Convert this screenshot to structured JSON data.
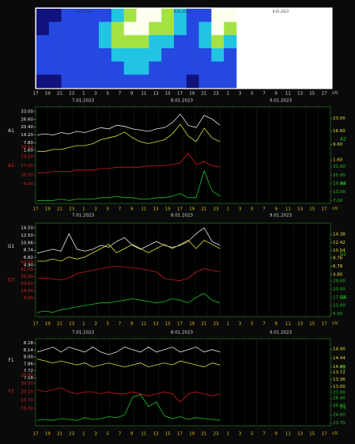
{
  "spectrogram": {
    "dates": [
      "7.01.2023",
      "8.01.2023",
      "9.01.2023"
    ],
    "intensity": [
      [
        0,
        0,
        1,
        1,
        1,
        1,
        2,
        3,
        4,
        4,
        3,
        2,
        1,
        1,
        4,
        4
      ],
      [
        0,
        1,
        1,
        1,
        1,
        2,
        3,
        4,
        4,
        3,
        3,
        2,
        1,
        2,
        4,
        3
      ],
      [
        1,
        1,
        1,
        1,
        1,
        2,
        3,
        3,
        3,
        2,
        2,
        1,
        1,
        2,
        3,
        2
      ],
      [
        1,
        1,
        1,
        1,
        1,
        1,
        2,
        2,
        2,
        2,
        1,
        1,
        1,
        1,
        2,
        1
      ],
      [
        1,
        1,
        1,
        1,
        1,
        1,
        1,
        2,
        2,
        1,
        1,
        1,
        1,
        1,
        1,
        1
      ],
      [
        0,
        0,
        1,
        1,
        1,
        1,
        1,
        1,
        1,
        1,
        1,
        1,
        0,
        1,
        1,
        1
      ]
    ]
  },
  "hours": [
    17,
    19,
    21,
    23,
    1,
    3,
    5,
    7,
    9,
    11,
    13,
    15,
    17,
    19,
    21,
    23,
    1,
    3,
    5,
    7,
    9,
    11,
    13,
    15,
    17
  ],
  "unit": "UTC",
  "panels": [
    {
      "dates": [
        "7.01.2023",
        "8.01.2023",
        "9.01.2023"
      ],
      "series": [
        {
          "name": "A1",
          "color": "#e8e8e8",
          "ticks": [
            {
              "value": 33,
              "label": "33.00"
            },
            {
              "value": 26.6,
              "label": "26.60"
            },
            {
              "value": 20.4,
              "label": "20.40"
            },
            {
              "value": 14.2,
              "label": "14.20"
            },
            {
              "value": 7.8,
              "label": "7.80"
            },
            {
              "value": 1.6,
              "label": "1.60"
            }
          ],
          "values": [
            14,
            15,
            14,
            16,
            15,
            17,
            16,
            18,
            20,
            19,
            22,
            21,
            19,
            18,
            17,
            19,
            20,
            24,
            31,
            22,
            20,
            30,
            27,
            22
          ]
        },
        {
          "name": "A2",
          "color": "#dede3a",
          "ticks": [
            {
              "value": 23,
              "label": "23.00"
            },
            {
              "value": 16.6,
              "label": "16.60"
            },
            {
              "value": 9.6,
              "label": "9.60"
            },
            {
              "value": 1.6,
              "label": "1.60"
            }
          ],
          "values": [
            6,
            6,
            7,
            7,
            8,
            9,
            9,
            10,
            12,
            13,
            14,
            16,
            13,
            11,
            10,
            11,
            12,
            15,
            20,
            14,
            11,
            18,
            13,
            11
          ]
        },
        {
          "name": "A3",
          "color": "#d01818",
          "ticks": [
            {
              "value": 30,
              "label": "30.00"
            },
            {
              "value": 23.5,
              "label": "23.50"
            },
            {
              "value": 17,
              "label": "17.00"
            },
            {
              "value": 10.5,
              "label": "10.50"
            },
            {
              "value": 4,
              "label": "4.00"
            }
          ],
          "values": [
            12,
            12,
            13,
            13,
            13,
            14,
            14,
            14,
            15,
            15,
            16,
            16,
            16,
            16,
            17,
            17,
            17,
            18,
            19,
            26,
            18,
            20,
            17,
            16
          ]
        },
        {
          "name": "A4",
          "color": "#22c022",
          "ticks": [
            {
              "value": 31,
              "label": "31.00"
            },
            {
              "value": 25,
              "label": "25.00"
            },
            {
              "value": 19,
              "label": "19.00"
            },
            {
              "value": 13,
              "label": "13.00"
            },
            {
              "value": 7,
              "label": "7.00"
            }
          ],
          "values": [
            7,
            7,
            7,
            8,
            7,
            8,
            8,
            8,
            9,
            9,
            10,
            9,
            9,
            8,
            8,
            9,
            9,
            10,
            12,
            9,
            9,
            28,
            14,
            10
          ]
        }
      ]
    },
    {
      "dates": [
        "7.01.2023",
        "8.01.2023",
        "9.01.2023"
      ],
      "series": [
        {
          "name": "G1",
          "color": "#e8e8e8",
          "ticks": [
            {
              "value": 14.5,
              "label": "14.50"
            },
            {
              "value": 12.5,
              "label": "12.50"
            },
            {
              "value": 10.66,
              "label": "10.66"
            },
            {
              "value": 8.74,
              "label": "8.74"
            },
            {
              "value": 6.82,
              "label": "6.82"
            },
            {
              "value": 4.9,
              "label": "4.90"
            }
          ],
          "values": [
            8,
            8.5,
            9,
            8.5,
            13,
            9,
            8.5,
            9,
            10,
            9.5,
            11,
            12,
            10,
            9,
            10,
            11,
            10,
            9.5,
            10,
            11,
            13,
            14.5,
            11,
            10
          ]
        },
        {
          "name": "G2",
          "color": "#dede3a",
          "ticks": [
            {
              "value": 14.38,
              "label": "14.38"
            },
            {
              "value": 12.42,
              "label": "12.42"
            },
            {
              "value": 10.54,
              "label": "10.54"
            },
            {
              "value": 8.76,
              "label": "8.76"
            },
            {
              "value": 6.78,
              "label": "6.78"
            },
            {
              "value": 4.8,
              "label": "4.80"
            }
          ],
          "values": [
            8,
            8,
            8.5,
            8,
            9,
            8.5,
            9,
            10,
            11,
            12,
            10,
            11,
            12,
            11,
            10,
            11,
            12,
            11,
            12,
            13,
            11,
            13,
            12,
            11
          ]
        },
        {
          "name": "G3",
          "color": "#d01818",
          "ticks": [
            {
              "value": 50,
              "label": "50.00"
            },
            {
              "value": 41,
              "label": "41.00"
            },
            {
              "value": 32,
              "label": "32.00"
            },
            {
              "value": 23,
              "label": "23.00"
            },
            {
              "value": 14,
              "label": "14.00"
            },
            {
              "value": 5,
              "label": "5.00"
            }
          ],
          "values": [
            30,
            30,
            29,
            28,
            30,
            36,
            38,
            40,
            42,
            44,
            45,
            44,
            43,
            42,
            40,
            38,
            30,
            28,
            27,
            30,
            38,
            42,
            40,
            38
          ]
        },
        {
          "name": "G4",
          "color": "#22c022",
          "ticks": [
            {
              "value": 29,
              "label": "29.00"
            },
            {
              "value": 23,
              "label": "23.00"
            },
            {
              "value": 17,
              "label": "17.00"
            },
            {
              "value": 11,
              "label": "11.00"
            },
            {
              "value": 5,
              "label": "5.00"
            }
          ],
          "values": [
            6,
            7,
            6,
            8,
            9,
            10,
            11,
            12,
            13,
            13,
            14,
            15,
            16,
            15,
            14,
            13,
            14,
            16,
            15,
            13,
            17,
            20,
            15,
            13
          ]
        }
      ]
    },
    {
      "dates": [
        "7.01.2023",
        "8.01.2023",
        "9.01.2023"
      ],
      "series": [
        {
          "name": "F1",
          "color": "#e8e8e8",
          "ticks": [
            {
              "value": 8.28,
              "label": "8.28"
            },
            {
              "value": 8.14,
              "label": "8.14"
            },
            {
              "value": 8,
              "label": "8.00"
            },
            {
              "value": 7.86,
              "label": "7.86"
            },
            {
              "value": 7.72,
              "label": "7.72"
            },
            {
              "value": 7.58,
              "label": "7.58"
            }
          ],
          "values": [
            8.1,
            8.15,
            8.2,
            8.1,
            8.2,
            8.15,
            8.1,
            8.2,
            8.1,
            8.05,
            8.1,
            8.2,
            8.15,
            8.1,
            8.2,
            8.1,
            8.15,
            8.2,
            8.1,
            8.15,
            8.2,
            8.1,
            8.15,
            8.1
          ]
        },
        {
          "name": "F2",
          "color": "#dede3a",
          "ticks": [
            {
              "value": 14.9,
              "label": "14.90"
            },
            {
              "value": 14.44,
              "label": "14.44"
            },
            {
              "value": 14,
              "label": "14.00"
            },
            {
              "value": 13.72,
              "label": "13.72"
            },
            {
              "value": 13.36,
              "label": "13.36"
            },
            {
              "value": 13,
              "label": "13.00"
            }
          ],
          "values": [
            14.4,
            14.3,
            14.2,
            14.3,
            14.2,
            14.1,
            14.2,
            14,
            14.1,
            14.2,
            14.1,
            14,
            14.1,
            14.2,
            14,
            14.1,
            14.2,
            14.1,
            14.3,
            14.2,
            14.1,
            14,
            14.2,
            14.1
          ]
        },
        {
          "name": "F3",
          "color": "#d01818",
          "ticks": [
            {
              "value": 20.9,
              "label": "20.90"
            },
            {
              "value": 20.5,
              "label": "20.50"
            },
            {
              "value": 20.1,
              "label": "20.10"
            },
            {
              "value": 19.7,
              "label": "19.70"
            },
            {
              "value": 19.3,
              "label": "19.30"
            }
          ],
          "values": [
            20.2,
            20.1,
            20.2,
            20.3,
            20.1,
            20,
            20.1,
            20.1,
            20,
            20.1,
            20,
            20,
            20.1,
            20,
            19.9,
            20,
            20.1,
            20,
            19.6,
            20,
            20.1,
            20,
            19.9,
            20
          ]
        },
        {
          "name": "F4",
          "color": "#22c022",
          "ticks": [
            {
              "value": 27,
              "label": "27.00"
            },
            {
              "value": 26.4,
              "label": "26.40"
            },
            {
              "value": 25.6,
              "label": "25.60"
            },
            {
              "value": 24.6,
              "label": "24.60"
            },
            {
              "value": 23.7,
              "label": "23.70"
            }
          ],
          "values": [
            24,
            24.1,
            24,
            24.2,
            24.1,
            24,
            24.3,
            24.1,
            24.2,
            24.4,
            24.3,
            24.6,
            26.5,
            26.8,
            25.5,
            26,
            24.5,
            24.2,
            24.4,
            24.1,
            24.3,
            24.2,
            24.1,
            24
          ]
        }
      ]
    }
  ]
}
